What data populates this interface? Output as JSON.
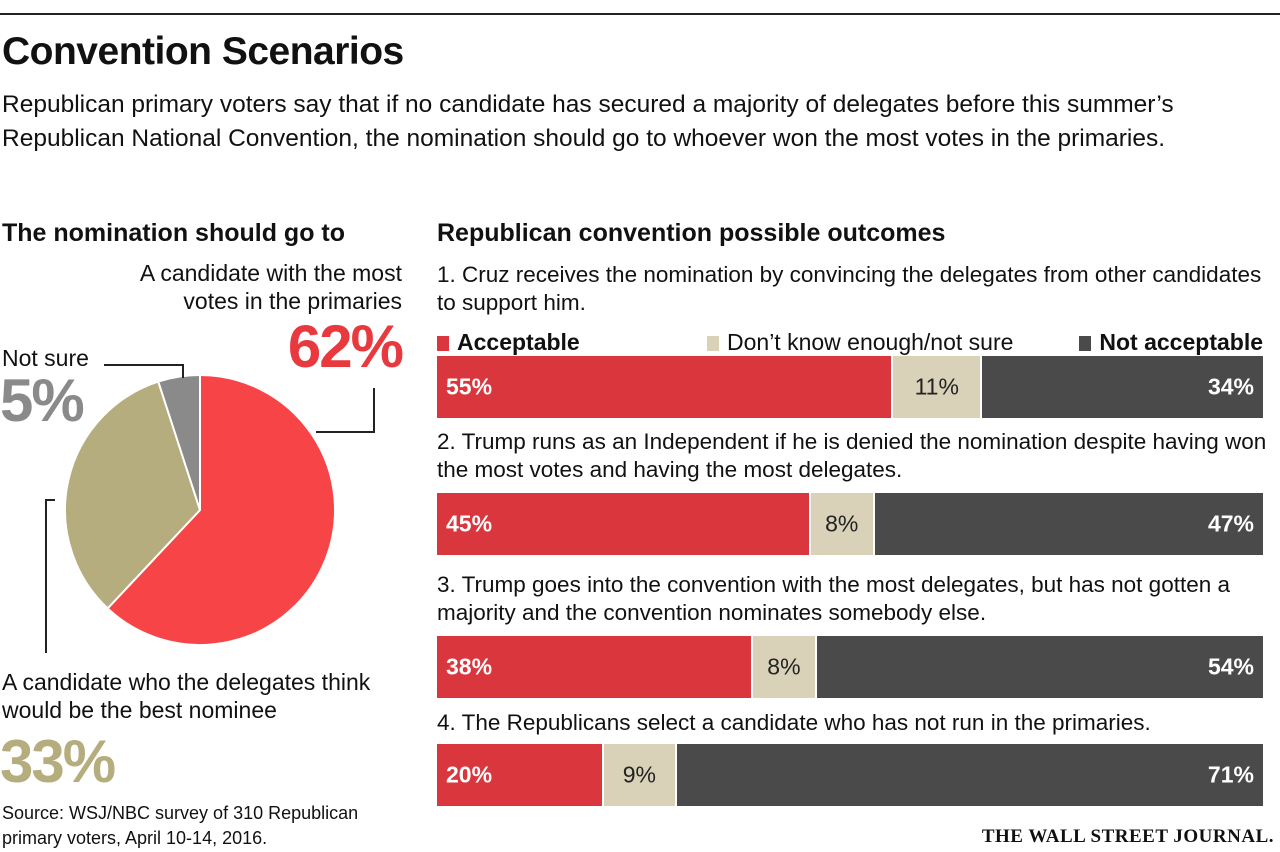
{
  "header": {
    "title": "Convention Scenarios",
    "subtitle": "Republican primary voters say that if no candidate has secured a majority of delegates before this summer’s Republican National Convention, the nomination should go to whoever won the most votes in the primaries."
  },
  "colors": {
    "acceptable": "#d9363e",
    "dont_know": "#d9d2b8",
    "not_acceptable": "#4a4a4a",
    "pie_most_votes": "#f74447",
    "pie_delegates": "#b5ad7d",
    "pie_not_sure": "#8a8a8a"
  },
  "chart_data": [
    {
      "type": "pie",
      "title": "The nomination should go to",
      "slices": [
        {
          "label_lines": [
            "A candidate with the most",
            "votes in the primaries"
          ],
          "value": 62,
          "display": "62%",
          "color": "#f74447"
        },
        {
          "label_lines": [
            "A candidate who the delegates think",
            "would be the best nominee"
          ],
          "value": 33,
          "display": "33%",
          "color": "#b5ad7d"
        },
        {
          "label_lines": [
            "Not sure"
          ],
          "value": 5,
          "display": "5%",
          "color": "#8a8a8a"
        }
      ]
    },
    {
      "type": "bar",
      "stacked": true,
      "orientation": "horizontal",
      "title": "Republican convention possible outcomes",
      "legend": [
        "Acceptable",
        "Don’t know enough/not sure",
        "Not acceptable"
      ],
      "categories": [
        "1. Cruz receives the nomination by convincing the delegates from other candidates to support him.",
        "2. Trump runs as an Independent if he is denied the nomination despite having won the most votes and having the most delegates.",
        "3. Trump goes into the convention with the most delegates, but has not gotten a majority and the convention nominates somebody else.",
        "4. The Republicans select a candidate who has not run in the primaries."
      ],
      "series": [
        {
          "name": "Acceptable",
          "values": [
            55,
            45,
            38,
            20
          ],
          "labels": [
            "55%",
            "45%",
            "38%",
            "20%"
          ]
        },
        {
          "name": "Don’t know enough/not sure",
          "values": [
            11,
            8,
            8,
            9
          ],
          "labels": [
            "11%",
            "8%",
            "8%",
            "9%"
          ]
        },
        {
          "name": "Not acceptable",
          "values": [
            34,
            47,
            54,
            71
          ],
          "labels": [
            "34%",
            "47%",
            "54%",
            "71%"
          ]
        }
      ]
    }
  ],
  "source_lines": [
    "Source: WSJ/NBC survey of 310 Republican",
    "primary voters, April 10-14, 2016."
  ],
  "credit": "THE WALL STREET JOURNAL."
}
